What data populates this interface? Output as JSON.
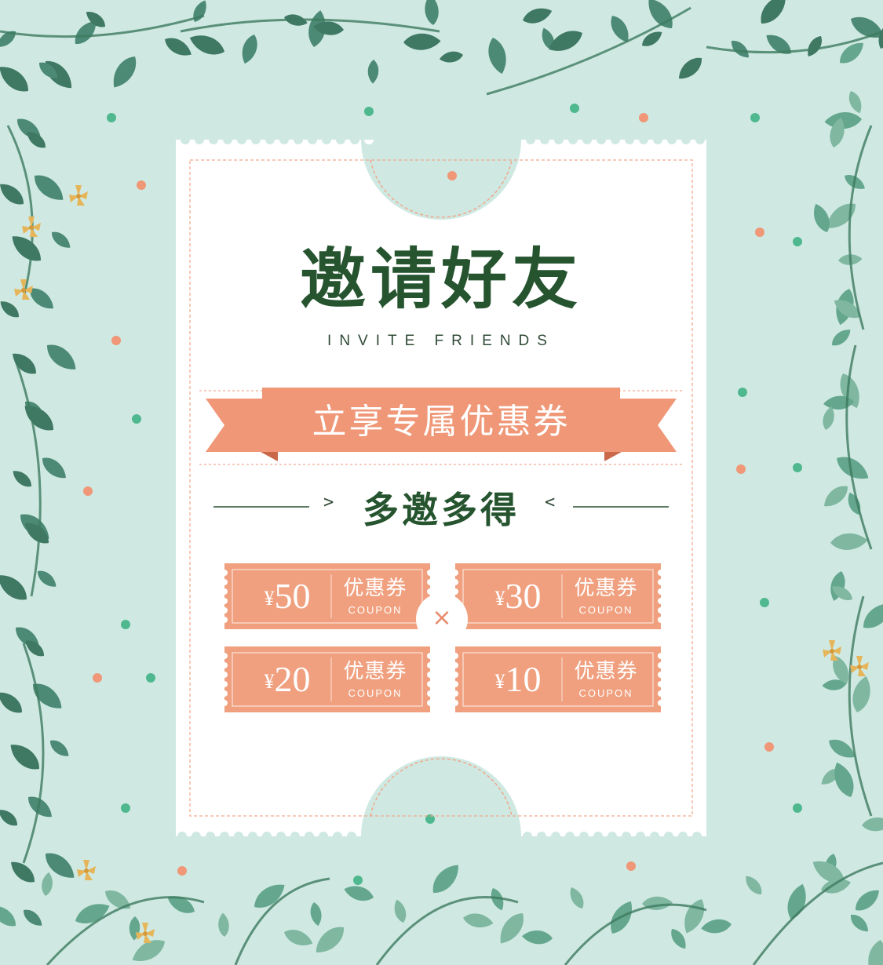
{
  "title": "邀请好友",
  "subtitle": "INVITE FRIENDS",
  "ribbon_text": "立享专属优惠券",
  "slogan": "多邀多得",
  "chevron_left": ">",
  "chevron_right": "<",
  "times_symbol": "×",
  "coupons": [
    {
      "currency": "¥",
      "amount": "50",
      "label": "优惠券",
      "sub": "COUPON"
    },
    {
      "currency": "¥",
      "amount": "30",
      "label": "优惠券",
      "sub": "COUPON"
    },
    {
      "currency": "¥",
      "amount": "20",
      "label": "优惠券",
      "sub": "COUPON"
    },
    {
      "currency": "¥",
      "amount": "10",
      "label": "优惠券",
      "sub": "COUPON"
    }
  ],
  "colors": {
    "background": "#cfe9e2",
    "ticket": "#ffffff",
    "accent": "#ef9777",
    "title": "#25542f",
    "leaf": "#3e7f69"
  }
}
